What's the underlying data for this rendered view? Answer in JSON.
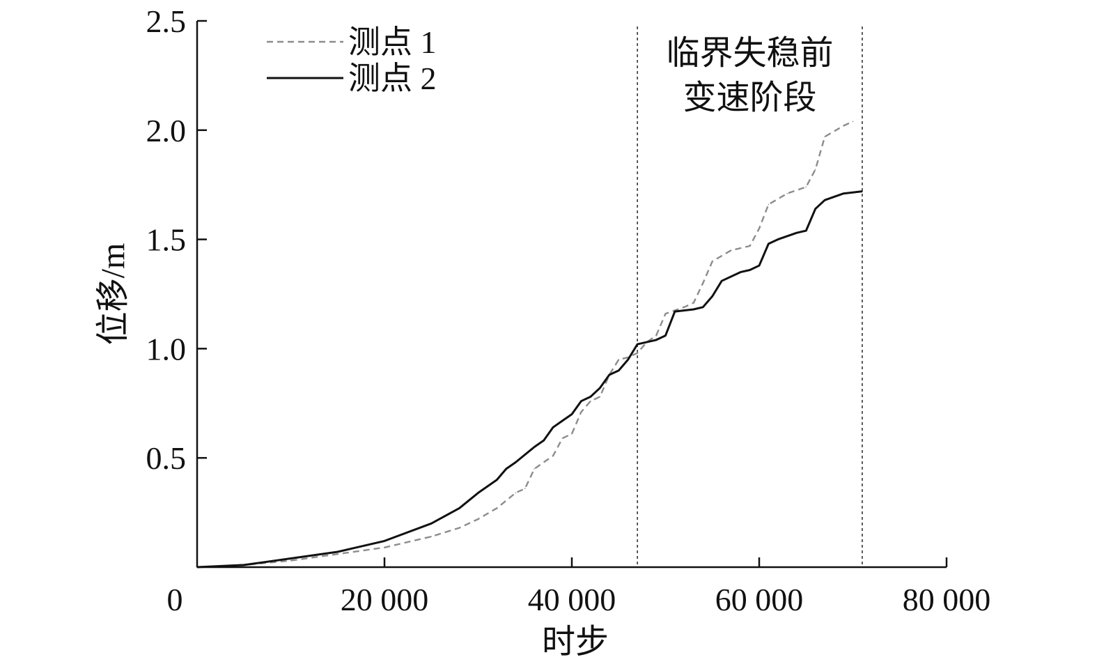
{
  "chart_data": {
    "type": "line",
    "title": "",
    "xlabel": "时步",
    "ylabel": "位移/m",
    "xlim": [
      0,
      80000
    ],
    "ylim": [
      0,
      2.5
    ],
    "x_ticks": [
      0,
      20000,
      40000,
      60000,
      80000
    ],
    "x_tick_labels": [
      "0",
      "20 000",
      "40 000",
      "60 000",
      "80 000"
    ],
    "y_ticks": [
      0.5,
      1.0,
      1.5,
      2.0,
      2.5
    ],
    "y_tick_labels": [
      "0.5",
      "1.0",
      "1.5",
      "2.0",
      "2.5"
    ],
    "grid": false,
    "legend_position": "top-left",
    "series": [
      {
        "name": "测点 1",
        "style": "dashed",
        "color": "#8c8c8c",
        "x": [
          0,
          5000,
          10000,
          15000,
          20000,
          25000,
          28000,
          30000,
          32000,
          34000,
          35000,
          36000,
          38000,
          39000,
          40000,
          41000,
          42000,
          43000,
          44000,
          45000,
          46000,
          47000,
          48000,
          49000,
          50000,
          52000,
          53000,
          54000,
          55000,
          57000,
          59000,
          60000,
          61000,
          63000,
          65000,
          66000,
          67000,
          69000,
          70000
        ],
        "y": [
          0.0,
          0.01,
          0.03,
          0.06,
          0.09,
          0.14,
          0.18,
          0.22,
          0.27,
          0.34,
          0.36,
          0.45,
          0.51,
          0.59,
          0.61,
          0.71,
          0.76,
          0.78,
          0.88,
          0.95,
          0.96,
          0.98,
          1.03,
          1.06,
          1.16,
          1.19,
          1.21,
          1.3,
          1.4,
          1.45,
          1.47,
          1.55,
          1.66,
          1.71,
          1.74,
          1.82,
          1.97,
          2.02,
          2.04
        ]
      },
      {
        "name": "测点 2",
        "style": "solid",
        "color": "#111111",
        "x": [
          0,
          5000,
          10000,
          15000,
          20000,
          25000,
          28000,
          30000,
          32000,
          33000,
          34000,
          36000,
          37000,
          38000,
          39000,
          40000,
          41000,
          42000,
          43000,
          44000,
          45000,
          46000,
          47000,
          49000,
          50000,
          51000,
          53000,
          54000,
          55000,
          56000,
          58000,
          59000,
          60000,
          61000,
          62000,
          64000,
          65000,
          66000,
          67000,
          69000,
          71000
        ],
        "y": [
          0.0,
          0.01,
          0.04,
          0.07,
          0.12,
          0.2,
          0.27,
          0.34,
          0.4,
          0.45,
          0.48,
          0.55,
          0.58,
          0.64,
          0.67,
          0.7,
          0.76,
          0.78,
          0.82,
          0.88,
          0.9,
          0.95,
          1.02,
          1.04,
          1.06,
          1.17,
          1.18,
          1.19,
          1.24,
          1.31,
          1.35,
          1.36,
          1.38,
          1.48,
          1.5,
          1.53,
          1.54,
          1.64,
          1.68,
          1.71,
          1.72
        ]
      }
    ],
    "vertical_lines": [
      {
        "x": 47000,
        "style": "dotted"
      },
      {
        "x": 71000,
        "style": "dotted"
      }
    ],
    "annotation": {
      "lines": [
        "临界失稳前",
        "变速阶段"
      ]
    }
  }
}
